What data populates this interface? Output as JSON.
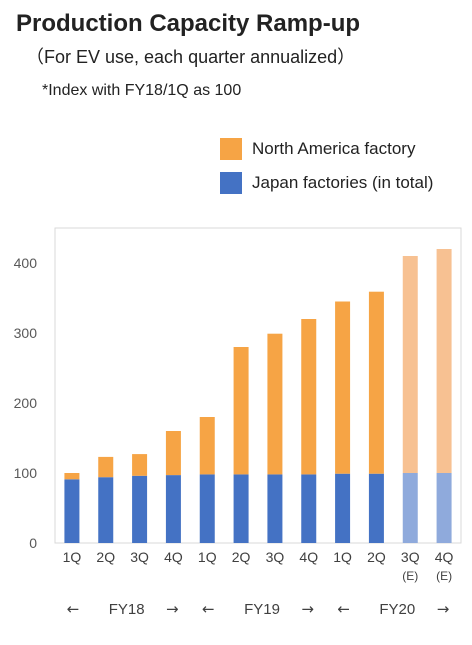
{
  "title": "Production Capacity Ramp-up",
  "subtitle": "（For EV use, each quarter annualized）",
  "note": "*Index with FY18/1Q as 100",
  "colors": {
    "north_america": "#F6A445",
    "japan": "#4472C4",
    "north_america_estimate": "#F7C192",
    "japan_estimate": "#8FAADC"
  },
  "chart_data": {
    "type": "bar",
    "stacked": true,
    "categories": [
      "1Q",
      "2Q",
      "3Q",
      "4Q",
      "1Q",
      "2Q",
      "3Q",
      "4Q",
      "1Q",
      "2Q",
      "3Q",
      "4Q"
    ],
    "category_sublabels": [
      "",
      "",
      "",
      "",
      "",
      "",
      "",
      "",
      "",
      "",
      "(E)",
      "(E)"
    ],
    "estimate_flags": [
      false,
      false,
      false,
      false,
      false,
      false,
      false,
      false,
      false,
      false,
      true,
      true
    ],
    "fiscal_years": [
      {
        "label": "FY18",
        "start": 0,
        "end": 3
      },
      {
        "label": "FY19",
        "start": 4,
        "end": 7
      },
      {
        "label": "FY20",
        "start": 8,
        "end": 11
      }
    ],
    "arrow_left": "←",
    "arrow_right": "→",
    "series": [
      {
        "name": "Japan factories (in total)",
        "values": [
          91,
          94,
          96,
          97,
          98,
          98,
          98,
          98,
          99,
          99,
          100,
          100
        ]
      },
      {
        "name": "North America factory",
        "values": [
          9,
          29,
          31,
          63,
          82,
          182,
          201,
          222,
          246,
          260,
          310,
          320
        ]
      }
    ],
    "y_ticks": [
      0,
      100,
      200,
      300,
      400
    ],
    "ylim": [
      0,
      450
    ],
    "grid": false,
    "legend_position": "top-right"
  }
}
